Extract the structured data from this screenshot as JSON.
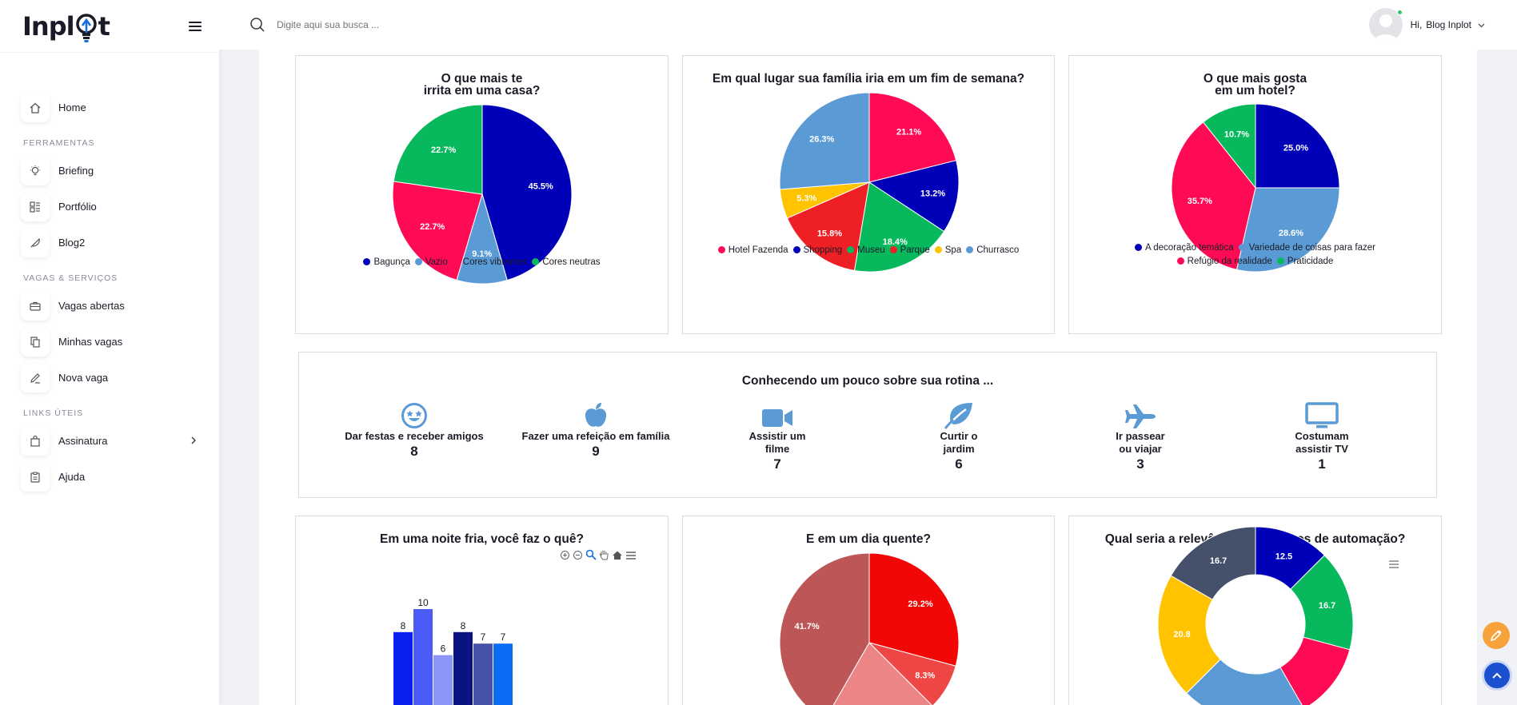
{
  "app": {
    "logo_text_left": "Inpl",
    "logo_text_right": "t"
  },
  "search": {
    "placeholder": "Digite aqui sua busca ..."
  },
  "user": {
    "greeting": "Hi,",
    "name": "Blog Inplot"
  },
  "sidebar": {
    "home": "Home",
    "section_tools": "FERRAMENTAS",
    "briefing": "Briefing",
    "portfolio": "Portfólio",
    "blog2": "Blog2",
    "section_jobs": "VAGAS & SERVIÇOS",
    "open_jobs": "Vagas abertas",
    "my_jobs": "Minhas vagas",
    "new_job": "Nova vaga",
    "section_links": "LINKS ÚTEIS",
    "subscription": "Assinatura",
    "help": "Ajuda"
  },
  "chart_data": [
    {
      "type": "pie",
      "title_lines": [
        "O que mais te",
        "irrita em uma casa?"
      ],
      "labels": [
        "Bagunça",
        "Vazio",
        "Cores vibrantes",
        "Cores neutras"
      ],
      "values": [
        45.5,
        9.1,
        22.7,
        22.7
      ],
      "colors": [
        "#0000b8",
        "#5b9bd5",
        "#ff0a54",
        "#08b85c"
      ]
    },
    {
      "type": "pie",
      "title_lines": [
        "Em qual lugar sua família iria em um fim de semana?"
      ],
      "labels": [
        "Hotel Fazenda",
        "Shopping",
        "Museu",
        "Parque",
        "Spa",
        "Churrasco"
      ],
      "values": [
        21.1,
        13.2,
        18.4,
        15.8,
        5.3,
        26.3
      ],
      "colors": [
        "#ff0a54",
        "#0000b8",
        "#08b85c",
        "#ee1f25",
        "#ffc300",
        "#5b9bd5"
      ]
    },
    {
      "type": "pie",
      "title_lines": [
        "O que mais gosta",
        "em um hotel?"
      ],
      "labels": [
        "A decoração temática",
        "Variedade de coisas para fazer",
        "Refúgio da realidade",
        "Praticidade"
      ],
      "values": [
        25.0,
        28.6,
        35.7,
        10.7
      ],
      "colors": [
        "#0000b8",
        "#5b9bd5",
        "#ff0a54",
        "#08b85c"
      ]
    },
    {
      "type": "bar",
      "title_lines": [
        "Em uma noite fria, você faz o quê?"
      ],
      "values": [
        8,
        10,
        6,
        8,
        7,
        7
      ],
      "colors": [
        "#0a1ef0",
        "#4a5cf5",
        "#8c95f5",
        "#0a1380",
        "#4653a8",
        "#0a6cf5"
      ]
    },
    {
      "type": "pie",
      "title_lines": [
        "E em um dia quente?"
      ],
      "values": [
        29.2,
        8.3,
        20.8,
        41.7
      ],
      "colors": [
        "#f20707",
        "#ee4545",
        "#ec8585",
        "#bd5656"
      ],
      "visible_labels": [
        "29.2%",
        "8.3%",
        "",
        "41.7%"
      ]
    },
    {
      "type": "donut",
      "title_lines": [
        "Qual seria a relevância desse tipos de automação?"
      ],
      "values": [
        12.5,
        16.7,
        12.5,
        20.8,
        20.8,
        16.7
      ],
      "colors": [
        "#0000b8",
        "#08b85c",
        "#ff0a54",
        "#5b9bd5",
        "#ffc300",
        "#45506a"
      ],
      "visible_labels": [
        "12.5",
        "16.7",
        "",
        "",
        "20.8",
        "16.7"
      ]
    }
  ],
  "routine": {
    "title": "Conhecendo um pouco sobre sua rotina ...",
    "items": [
      {
        "icon": "star-eyes-face-icon",
        "label_lines": [
          "Dar festas e receber amigos"
        ],
        "value": "8"
      },
      {
        "icon": "apple-icon",
        "label_lines": [
          "Fazer uma refeição em família"
        ],
        "value": "9"
      },
      {
        "icon": "video-camera-icon",
        "label_lines": [
          "Assistir um",
          "filme"
        ],
        "value": "7"
      },
      {
        "icon": "leaf-icon",
        "label_lines": [
          "Curtir o",
          "jardim"
        ],
        "value": "6"
      },
      {
        "icon": "airplane-icon",
        "label_lines": [
          "Ir passear",
          "ou viajar"
        ],
        "value": "3"
      },
      {
        "icon": "monitor-icon",
        "label_lines": [
          "Costumam",
          "assistir TV"
        ],
        "value": "1"
      }
    ]
  },
  "colors": {
    "accent_blue": "#5b9bd5",
    "fab_orange": "#f7a23a",
    "fab_blue": "#1a4fd0"
  }
}
